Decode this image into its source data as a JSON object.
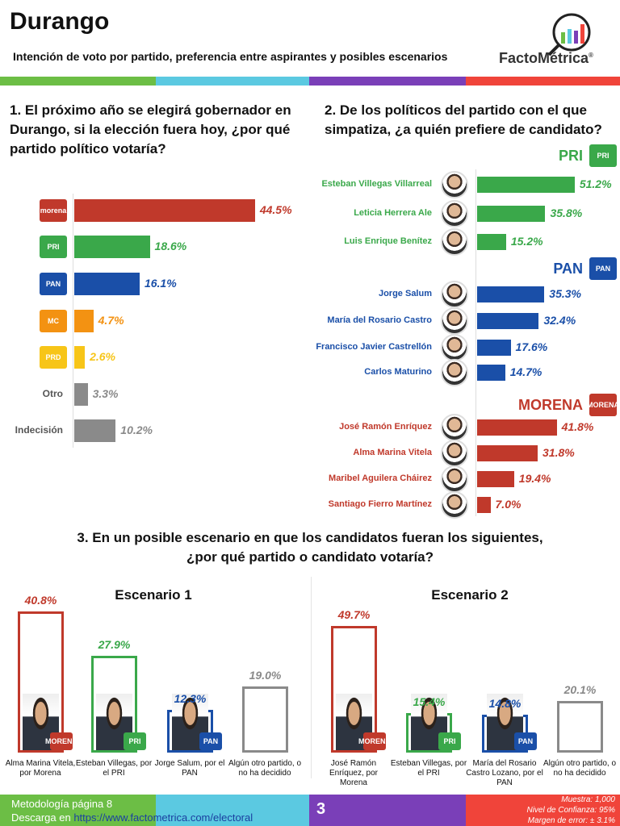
{
  "header": {
    "title": "Durango",
    "subtitle": "Intención de voto por partido, preferencia entre aspirantes y posibles escenarios",
    "logo": "FactoMétrica",
    "logo_mark": "®"
  },
  "colors": {
    "green": "#6cbe45",
    "cyan": "#5bc9e1",
    "purple": "#7a3fb8",
    "red": "#f0443a",
    "morena": "#c0392b",
    "pri": "#3aa84a",
    "pan": "#1a4fa8",
    "mc": "#f39212",
    "prd": "#f7c518",
    "gray": "#8a8a8a"
  },
  "chart_data": [
    {
      "type": "bar",
      "orientation": "horizontal",
      "title": "1. El próximo año se elegirá gobernador en Durango, si la elección fuera hoy, ¿por qué partido político votaría?",
      "categories": [
        "morena",
        "PRI",
        "PAN",
        "MC",
        "PRD",
        "Otro",
        "Indecisión"
      ],
      "values": [
        44.5,
        18.6,
        16.1,
        4.7,
        2.6,
        3.3,
        10.2
      ],
      "labels": [
        "44.5%",
        "18.6%",
        "16.1%",
        "4.7%",
        "2.6%",
        "3.3%",
        "10.2%"
      ],
      "colors": [
        "#c0392b",
        "#3aa84a",
        "#1a4fa8",
        "#f39212",
        "#f7c518",
        "#8a8a8a",
        "#8a8a8a"
      ],
      "icons": [
        "morena-logo",
        "pri-logo",
        "pan-logo",
        "mc-logo",
        "prd-logo",
        null,
        null
      ]
    },
    {
      "type": "bar",
      "orientation": "horizontal",
      "title": "2. De los políticos del partido con el que simpatiza, ¿a quién prefiere de candidato?",
      "groups": [
        {
          "party": "PRI",
          "color": "#3aa84a",
          "items": [
            {
              "name": "Esteban Villegas Villarreal",
              "value": 51.2,
              "label": "51.2%"
            },
            {
              "name": "Leticia Herrera Ale",
              "value": 35.8,
              "label": "35.8%"
            },
            {
              "name": "Luis Enrique Benítez",
              "value": 15.2,
              "label": "15.2%"
            }
          ]
        },
        {
          "party": "PAN",
          "color": "#1a4fa8",
          "items": [
            {
              "name": "Jorge Salum",
              "value": 35.3,
              "label": "35.3%"
            },
            {
              "name": "María del Rosario Castro",
              "value": 32.4,
              "label": "32.4%"
            },
            {
              "name": "Francisco Javier Castrellón",
              "value": 17.6,
              "label": "17.6%"
            },
            {
              "name": "Carlos Maturino",
              "value": 14.7,
              "label": "14.7%"
            }
          ]
        },
        {
          "party": "MORENA",
          "color": "#c0392b",
          "items": [
            {
              "name": "José Ramón Enríquez",
              "value": 41.8,
              "label": "41.8%"
            },
            {
              "name": "Alma Marina Vitela",
              "value": 31.8,
              "label": "31.8%"
            },
            {
              "name": "Maribel Aguilera Cháirez",
              "value": 19.4,
              "label": "19.4%"
            },
            {
              "name": "Santiago Fierro Martínez",
              "value": 7.0,
              "label": "7.0%"
            }
          ]
        }
      ]
    },
    {
      "type": "bar",
      "title": "Escenario 1",
      "categories": [
        "Alma Marina Vitela, por Morena",
        "Esteban Villegas, por el PRI",
        "Jorge Salum, por el PAN",
        "Algún otro partido, o no ha decidido"
      ],
      "values": [
        40.8,
        27.9,
        12.3,
        19.0
      ],
      "labels": [
        "40.8%",
        "27.9%",
        "12.3%",
        "19.0%"
      ],
      "colors": [
        "#c0392b",
        "#3aa84a",
        "#1a4fa8",
        "#8a8a8a"
      ],
      "party_icons": [
        "morena",
        "pri",
        "pan",
        null
      ]
    },
    {
      "type": "bar",
      "title": "Escenario 2",
      "categories": [
        "José Ramón Enríquez, por Morena",
        "Esteban Villegas, por el PRI",
        "María del Rosario Castro Lozano, por el PAN",
        "Algún otro partido, o no ha decidido"
      ],
      "values": [
        49.7,
        15.4,
        14.8,
        20.1
      ],
      "labels": [
        "49.7%",
        "15.4%",
        "14.8%",
        "20.1%"
      ],
      "colors": [
        "#c0392b",
        "#3aa84a",
        "#1a4fa8",
        "#8a8a8a"
      ],
      "party_icons": [
        "morena",
        "pri",
        "pan",
        null
      ]
    }
  ],
  "q3_title_line1": "3. En un posible escenario en que los candidatos fueran los siguientes,",
  "q3_title_line2": "¿por qué partido o candidato votaría?",
  "footer": {
    "methodology": "Metodología página 8",
    "download_prefix": "Descarga en ",
    "download_link": "https://www.factometrica.com/electoral",
    "page": "3",
    "sample": "Muestra: 1,000",
    "confidence": "Nivel de Confianza: 95%",
    "margin": "Margen de error: ± 3.1%"
  }
}
